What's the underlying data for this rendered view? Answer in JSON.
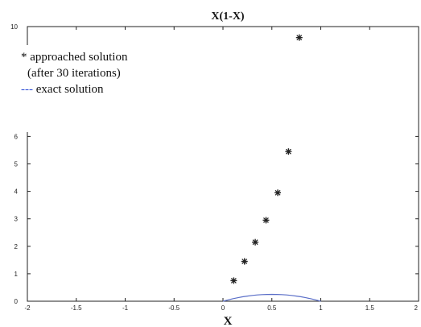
{
  "chart_data": {
    "type": "scatter",
    "title": "X(1-X)",
    "xlabel": "X",
    "ylabel": "",
    "xlim": [
      -2,
      2
    ],
    "ylim": [
      0,
      10
    ],
    "xticks": [
      "-2",
      "-1.5",
      "-1",
      "-0.5",
      "0",
      "0.5",
      "1",
      "1.5",
      "2"
    ],
    "yticks": [
      "0",
      "1",
      "2",
      "3",
      "4",
      "5",
      "6",
      "10"
    ],
    "series": [
      {
        "kind": "markers",
        "marker": "star",
        "color": "#222222",
        "x": [
          0.11,
          0.22,
          0.33,
          0.44,
          0.56,
          0.67,
          0.78
        ],
        "y": [
          0.75,
          1.45,
          2.15,
          2.95,
          3.95,
          5.45,
          9.6
        ]
      },
      {
        "kind": "line",
        "color": "#5b6fc8",
        "x": [
          0,
          0.05,
          0.1,
          0.15,
          0.2,
          0.25,
          0.3,
          0.35,
          0.4,
          0.45,
          0.5,
          0.55,
          0.6,
          0.65,
          0.7,
          0.75,
          0.8,
          0.85,
          0.9,
          0.95,
          1
        ],
        "y": [
          0,
          0.0475,
          0.09,
          0.1275,
          0.16,
          0.1875,
          0.21,
          0.2275,
          0.24,
          0.2475,
          0.25,
          0.2475,
          0.24,
          0.2275,
          0.21,
          0.1875,
          0.16,
          0.1275,
          0.09,
          0.0475,
          0
        ]
      }
    ],
    "legend": {
      "position": "top-left",
      "line1": "* approached solution",
      "line2": "(after 30 iterations)",
      "dash": "---",
      "line3": "exact solution"
    }
  }
}
